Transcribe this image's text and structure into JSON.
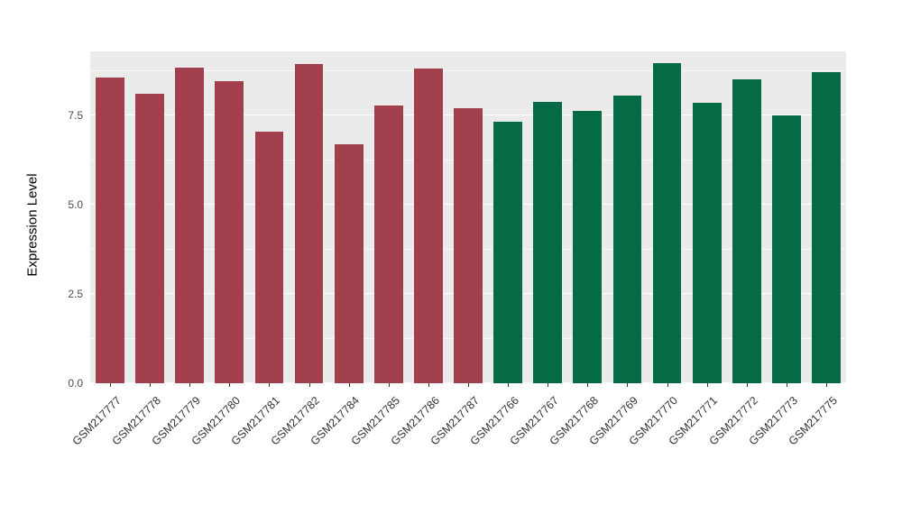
{
  "chart_data": {
    "type": "bar",
    "title": "",
    "xlabel": "",
    "ylabel": "Expression Level",
    "ylim": [
      0,
      9.3
    ],
    "yticks": [
      0.0,
      2.5,
      5.0,
      7.5
    ],
    "ytick_labels": [
      "0.0",
      "2.5",
      "5.0",
      "7.5"
    ],
    "minor_ticks": [
      1.25,
      3.75,
      6.25,
      8.75
    ],
    "grid": "on",
    "legend": "none",
    "panel_background": "#EBEBEB",
    "categories": [
      "GSM217777",
      "GSM217778",
      "GSM217779",
      "GSM217780",
      "GSM217781",
      "GSM217782",
      "GSM217784",
      "GSM217785",
      "GSM217786",
      "GSM217787",
      "GSM217766",
      "GSM217767",
      "GSM217768",
      "GSM217769",
      "GSM217770",
      "GSM217771",
      "GSM217772",
      "GSM217773",
      "GSM217775"
    ],
    "values": [
      8.57,
      8.11,
      8.85,
      8.47,
      7.05,
      8.95,
      6.7,
      7.78,
      8.82,
      7.71,
      7.33,
      7.88,
      7.63,
      8.06,
      8.97,
      7.86,
      8.52,
      7.51,
      8.72
    ],
    "groups": [
      "red",
      "red",
      "red",
      "red",
      "red",
      "red",
      "red",
      "red",
      "red",
      "red",
      "green",
      "green",
      "green",
      "green",
      "green",
      "green",
      "green",
      "green",
      "green"
    ],
    "palette": {
      "red": "#A13F4C",
      "green": "#046B44"
    }
  }
}
